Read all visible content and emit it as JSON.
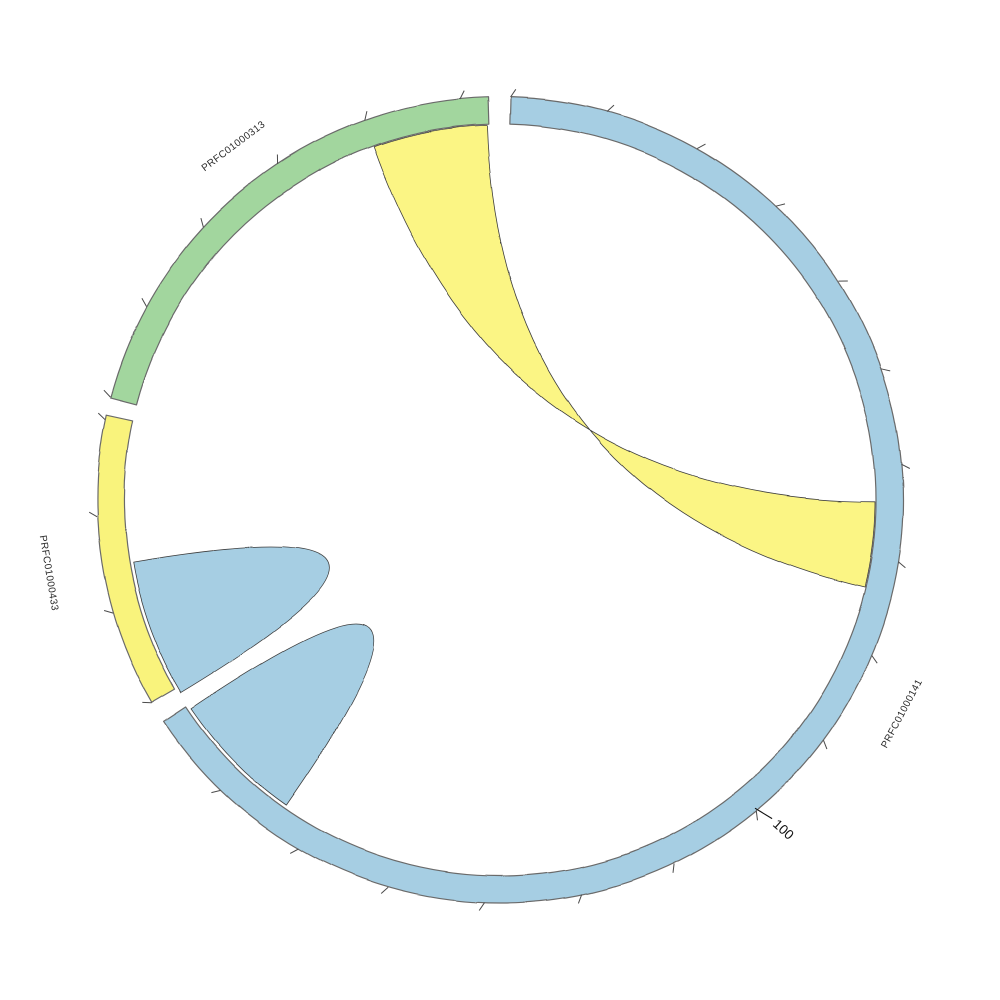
{
  "page": {
    "background": "#ffffff"
  },
  "chart_data": {
    "type": "chord",
    "title": "",
    "legend_position": "none",
    "grid": false,
    "layout_hints": {
      "center": [
        500,
        500
      ],
      "outer_radius": 403,
      "inner_radius": 376,
      "tick_inner_radius": 403,
      "tick_outer_radius": 411,
      "ribbon_attach_radius": 375,
      "fold_attach_radius": 372.5
    },
    "scale": {
      "units_per_tick": 10,
      "degrees_per_tick": 13.9,
      "labeled_every_units": 100
    },
    "sectors": [
      {
        "id": "PRFC01000141",
        "label": "PRFC01000141",
        "color": "#a6cee3",
        "start_angle_deg": 1.5,
        "end_angle_deg": 236.6,
        "approx_length_units": 169,
        "tick_spacing_deg": 13.9,
        "label_angle_deg": 118,
        "label_radius": 458
      },
      {
        "id": "PRFC01000433",
        "label": "PRFC01000433",
        "color": "#f9f37b",
        "start_angle_deg": 239.8,
        "end_angle_deg": 282.3,
        "approx_length_units": 31,
        "tick_spacing_deg": 13.9,
        "label_angle_deg": 260.8,
        "label_radius": 460
      },
      {
        "id": "PRFC01000313",
        "label": "PRFC01000313",
        "color": "#a2d69e",
        "start_angle_deg": 284.8,
        "end_angle_deg": 358.3,
        "approx_length_units": 53,
        "tick_spacing_deg": 13.9,
        "label_angle_deg": 323,
        "label_radius": 440
      }
    ],
    "axis_tick_label": {
      "text": "100",
      "sector": "PRFC01000141",
      "angle_deg": 140.4,
      "leader_r1": 400,
      "leader_r2": 419,
      "text_radius": 424,
      "rotation_deg": 42
    },
    "ribbons": [
      {
        "name": "link-313-to-141",
        "kind": "link",
        "twisted": true,
        "from_sector": "PRFC01000313",
        "from_span_deg": [
          340.4,
          358.0
        ],
        "to_sector": "PRFC01000141",
        "to_span_deg": [
          90.2,
          103.5
        ],
        "color": "#fbf584"
      },
      {
        "name": "fold-433",
        "kind": "fold",
        "sector": "PRFC01000433",
        "span_deg": [
          238.8,
          260.4
        ],
        "color": "#a6cee3"
      },
      {
        "name": "fold-141",
        "kind": "fold",
        "sector": "PRFC01000141",
        "span_deg": [
          215.0,
          235.9
        ],
        "color": "#a6cee3"
      }
    ],
    "stroke": {
      "arc_outline": "#6a6a6a",
      "arc_outline_width": 1.2,
      "ribbon_outline": "#3d3d3d",
      "ribbon_outline_width": 0.8,
      "tick_color": "#4a4a4a",
      "tick_width": 1,
      "label_color": "#2a2a2a"
    }
  }
}
